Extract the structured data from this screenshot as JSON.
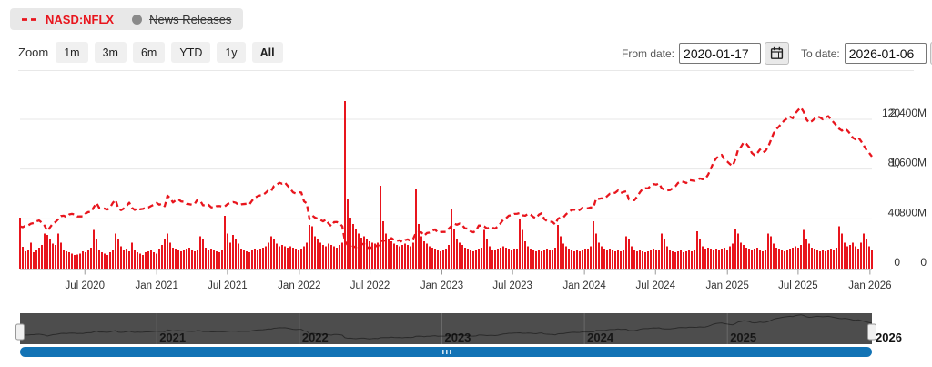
{
  "legend": {
    "series_label": "NASD:NFLX",
    "news_label": "News Releases",
    "news_disabled": true
  },
  "toolbar": {
    "zoom_label": "Zoom",
    "buttons": [
      "1m",
      "3m",
      "6m",
      "YTD",
      "1y",
      "All"
    ],
    "selected": "All"
  },
  "date_range": {
    "from_label": "From date:",
    "from_value": "2020-01-17",
    "to_label": "To date:",
    "to_value": "2026-01-06"
  },
  "navigator": {
    "year_marks": [
      {
        "label": "2021",
        "date": "2021-01-01"
      },
      {
        "label": "2022",
        "date": "2022-01-01"
      },
      {
        "label": "2023",
        "date": "2023-01-01"
      },
      {
        "label": "2024",
        "date": "2024-01-01"
      },
      {
        "label": "2025",
        "date": "2025-01-01"
      }
    ],
    "end_mark": {
      "label": "2026",
      "date": "2026-01-01"
    }
  },
  "colors": {
    "series_red": "#e8151d",
    "grid": "#e7e7e7",
    "axis_line": "#cfcfcf",
    "tick": "#999999",
    "label_text": "#333333",
    "navigator_bg": "#4d4d4d",
    "navigator_gridline": "rgba(255,255,255,0.16)",
    "navigator_line": "rgba(0,0,0,0.45)",
    "navigator_year_text": "#161616",
    "scrollbar_blue": "#1273b5",
    "handle_fill": "#f0f0f0",
    "handle_stroke": "#999999",
    "legend_bg": "#e8e8e8",
    "separator": "#e8e8e8"
  },
  "chart_data": {
    "type": "combo",
    "x_range": [
      "2020-01-17",
      "2026-01-06"
    ],
    "interval": "weekly",
    "x_ticks": [
      {
        "label": "Jul 2020",
        "date": "2020-07-01"
      },
      {
        "label": "Jan 2021",
        "date": "2021-01-01"
      },
      {
        "label": "Jul 2021",
        "date": "2021-07-01"
      },
      {
        "label": "Jan 2022",
        "date": "2022-01-01"
      },
      {
        "label": "Jul 2022",
        "date": "2022-07-01"
      },
      {
        "label": "Jan 2023",
        "date": "2023-01-01"
      },
      {
        "label": "Jul 2023",
        "date": "2023-07-01"
      },
      {
        "label": "Jan 2024",
        "date": "2024-01-01"
      },
      {
        "label": "Jul 2024",
        "date": "2024-07-01"
      },
      {
        "label": "Jan 2025",
        "date": "2025-01-01"
      },
      {
        "label": "Jul 2025",
        "date": "2025-07-01"
      },
      {
        "label": "Jan 2026",
        "date": "2026-01-01"
      }
    ],
    "price_axis": {
      "ticks": [
        0,
        40,
        80,
        120
      ],
      "labels": [
        "0",
        "40",
        "80",
        "120"
      ]
    },
    "volume_axis": {
      "ticks": [
        0,
        800,
        1600,
        2400
      ],
      "labels": [
        "0",
        "800M",
        "1,600M",
        "2,400M"
      ],
      "unit": "M"
    },
    "series": [
      {
        "name": "NASD:NFLX",
        "type": "line",
        "style": "dashed",
        "values": [
          33.9,
          33.3,
          34.5,
          34.8,
          36.1,
          36.6,
          38.0,
          38.7,
          36.9,
          34.5,
          30.2,
          33.2,
          36.2,
          37.5,
          39.7,
          42.2,
          42.5,
          41.5,
          43.5,
          44.0,
          43.5,
          41.9,
          42.0,
          41.9,
          44.3,
          45.5,
          45.5,
          49.3,
          52.7,
          48.8,
          48.9,
          48.2,
          47.5,
          49.2,
          52.9,
          55.2,
          48.3,
          47.0,
          48.3,
          50.3,
          53.0,
          48.9,
          47.2,
          48.5,
          47.7,
          48.0,
          49.0,
          49.1,
          50.3,
          51.3,
          52.8,
          51.4,
          52.2,
          50.2,
          58.6,
          56.6,
          53.2,
          54.9,
          55.7,
          54.0,
          53.8,
          52.1,
          51.8,
          51.3,
          52.2,
          55.5,
          54.6,
          50.9,
          51.0,
          51.3,
          49.3,
          48.9,
          50.2,
          50.3,
          49.9,
          50.0,
          51.9,
          52.8,
          53.5,
          53.0,
          51.2,
          51.7,
          51.9,
          52.1,
          51.6,
          54.7,
          56.9,
          58.2,
          58.9,
          59.3,
          61.0,
          63.2,
          62.5,
          66.4,
          67.5,
          69.0,
          68.2,
          69.1,
          66.6,
          64.1,
          61.3,
          60.4,
          61.4,
          61.2,
          54.1,
          52.5,
          39.7,
          42.7,
          41.0,
          40.2,
          39.1,
          38.0,
          39.4,
          36.1,
          34.1,
          37.4,
          37.5,
          36.4,
          34.1,
          21.9,
          19.0,
          19.9,
          18.0,
          16.9,
          18.6,
          19.7,
          19.8,
          17.5,
          16.2,
          17.4,
          18.9,
          17.6,
          22.1,
          22.5,
          22.6,
          22.7,
          24.5,
          23.0,
          22.4,
          22.8,
          21.3,
          22.9,
          23.5,
          22.3,
          24.0,
          28.9,
          29.5,
          29.1,
          26.5,
          28.6,
          29.0,
          30.5,
          31.5,
          29.0,
          29.4,
          29.5,
          29.5,
          32.1,
          34.2,
          36.1,
          35.3,
          36.2,
          34.7,
          32.3,
          32.2,
          30.0,
          29.2,
          30.5,
          34.6,
          34.5,
          33.9,
          32.3,
          33.0,
          32.9,
          32.2,
          33.9,
          36.4,
          39.5,
          40.5,
          42.5,
          43.0,
          44.0,
          44.1,
          44.6,
          42.8,
          42.5,
          43.9,
          43.3,
          41.5,
          40.5,
          43.3,
          44.5,
          39.8,
          38.2,
          37.7,
          37.5,
          35.5,
          40.1,
          41.1,
          41.2,
          43.7,
          45.5,
          47.1,
          47.4,
          46.3,
          47.2,
          48.9,
          48.7,
          48.5,
          49.2,
          49.0,
          56.4,
          56.1,
          56.5,
          55.9,
          58.2,
          60.2,
          60.5,
          61.0,
          62.8,
          60.7,
          61.6,
          62.2,
          55.5,
          55.1,
          55.0,
          57.8,
          61.2,
          64.0,
          64.6,
          64.5,
          66.5,
          68.0,
          67.5,
          68.5,
          64.7,
          63.3,
          62.9,
          63.1,
          64.5,
          66.1,
          68.9,
          70.1,
          69.7,
          68.8,
          71.1,
          70.9,
          70.5,
          71.2,
          72.5,
          71.8,
          72.2,
          75.5,
          80.3,
          85.6,
          88.7,
          90.5,
          91.4,
          87.9,
          86.1,
          84.0,
          82.5,
          88.0,
          95.8,
          97.7,
          101.4,
          100.2,
          97.6,
          93.0,
          91.1,
          92.8,
          95.7,
          93.3,
          94.6,
          97.9,
          103.3,
          108.8,
          112.1,
          114.3,
          117.0,
          119.2,
          120.8,
          122.1,
          120.9,
          124.9,
          127.5,
          129.5,
          126.0,
          120.0,
          117.3,
          118.5,
          120.5,
          122.3,
          121.5,
          120.0,
          121.5,
          122.5,
          120.0,
          117.5,
          115.0,
          112.4,
          110.9,
          112.5,
          111.0,
          108.5,
          105.2,
          103.9,
          105.5,
          102.5,
          99.0,
          95.5,
          93.0,
          90.0
        ]
      },
      {
        "name": "Volume",
        "type": "bar",
        "unit": "M",
        "values": [
          820,
          350,
          280,
          300,
          420,
          260,
          300,
          340,
          380,
          560,
          540,
          480,
          400,
          380,
          560,
          420,
          300,
          280,
          260,
          240,
          220,
          230,
          240,
          280,
          260,
          300,
          340,
          620,
          480,
          300,
          260,
          240,
          220,
          260,
          300,
          560,
          480,
          360,
          300,
          320,
          280,
          420,
          300,
          260,
          240,
          220,
          260,
          280,
          300,
          260,
          240,
          320,
          380,
          480,
          560,
          420,
          340,
          320,
          300,
          280,
          300,
          320,
          340,
          300,
          280,
          300,
          520,
          480,
          340,
          300,
          320,
          300,
          280,
          260,
          300,
          850,
          560,
          420,
          540,
          480,
          400,
          320,
          300,
          280,
          260,
          300,
          320,
          300,
          320,
          340,
          360,
          420,
          520,
          480,
          400,
          360,
          380,
          360,
          340,
          360,
          340,
          320,
          300,
          320,
          360,
          420,
          700,
          680,
          520,
          480,
          420,
          380,
          360,
          400,
          380,
          360,
          340,
          380,
          420,
          2690,
          1130,
          820,
          720,
          640,
          560,
          500,
          520,
          480,
          440,
          420,
          400,
          420,
          1330,
          760,
          560,
          480,
          440,
          400,
          380,
          360,
          380,
          400,
          380,
          360,
          420,
          1270,
          720,
          520,
          440,
          400,
          360,
          340,
          320,
          300,
          280,
          300,
          320,
          380,
          950,
          640,
          480,
          420,
          380,
          340,
          320,
          300,
          280,
          300,
          320,
          340,
          620,
          480,
          360,
          300,
          300,
          320,
          340,
          360,
          340,
          320,
          300,
          320,
          320,
          800,
          620,
          440,
          360,
          320,
          300,
          280,
          300,
          280,
          300,
          320,
          300,
          300,
          340,
          700,
          520,
          400,
          360,
          320,
          300,
          280,
          300,
          280,
          300,
          320,
          320,
          360,
          760,
          560,
          420,
          360,
          320,
          300,
          320,
          300,
          280,
          300,
          280,
          300,
          520,
          480,
          360,
          300,
          280,
          300,
          280,
          260,
          280,
          300,
          320,
          300,
          300,
          560,
          480,
          360,
          300,
          280,
          260,
          280,
          300,
          260,
          280,
          300,
          280,
          300,
          600,
          480,
          360,
          320,
          340,
          320,
          300,
          320,
          300,
          320,
          340,
          300,
          360,
          400,
          640,
          560,
          420,
          380,
          340,
          320,
          300,
          320,
          340,
          300,
          280,
          300,
          560,
          520,
          400,
          340,
          320,
          300,
          280,
          300,
          320,
          340,
          360,
          340,
          380,
          620,
          480,
          400,
          340,
          320,
          300,
          280,
          300,
          280,
          300,
          320,
          300,
          340,
          680,
          560,
          420,
          360,
          380,
          420,
          360,
          320,
          420,
          560,
          480,
          360,
          300
        ]
      }
    ]
  }
}
